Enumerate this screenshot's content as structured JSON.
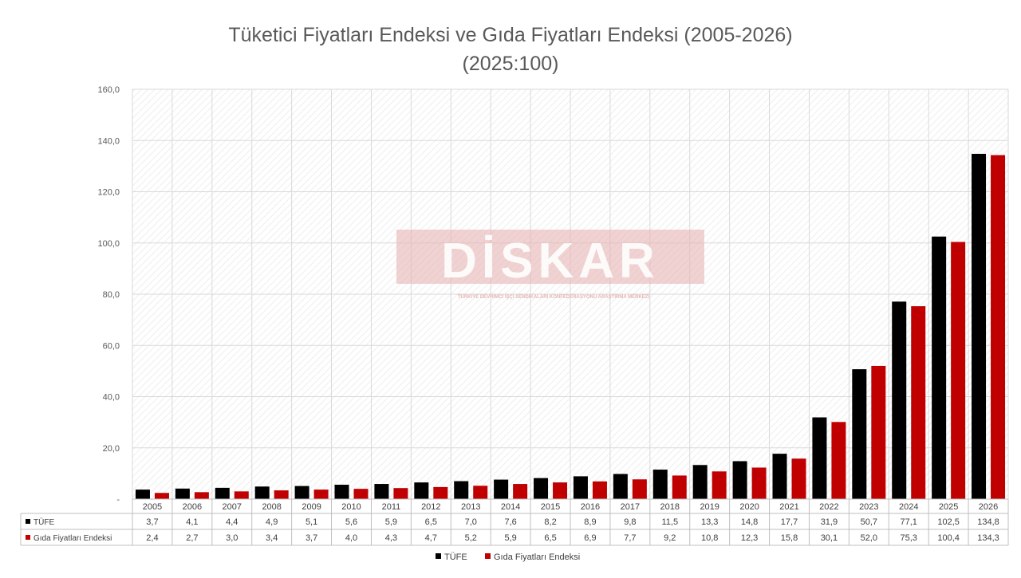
{
  "chart_data": {
    "type": "bar",
    "title": "Tüketici Fiyatları Endeksi ve Gıda Fiyatları Endeksi (2005-2026)",
    "subtitle": "(2025:100)",
    "categories": [
      "2005",
      "2006",
      "2007",
      "2008",
      "2009",
      "2010",
      "2011",
      "2012",
      "2013",
      "2014",
      "2015",
      "2016",
      "2017",
      "2018",
      "2019",
      "2020",
      "2021",
      "2022",
      "2023",
      "2024",
      "2025",
      "2026"
    ],
    "series": [
      {
        "name": "TÜFE",
        "color": "#000000",
        "values": [
          3.7,
          4.1,
          4.4,
          4.9,
          5.1,
          5.6,
          5.9,
          6.5,
          7.0,
          7.6,
          8.2,
          8.9,
          9.8,
          11.5,
          13.3,
          14.8,
          17.7,
          31.9,
          50.7,
          77.1,
          102.5,
          134.8
        ],
        "labels": [
          "3,7",
          "4,1",
          "4,4",
          "4,9",
          "5,1",
          "5,6",
          "5,9",
          "6,5",
          "7,0",
          "7,6",
          "8,2",
          "8,9",
          "9,8",
          "11,5",
          "13,3",
          "14,8",
          "17,7",
          "31,9",
          "50,7",
          "77,1",
          "102,5",
          "134,8"
        ]
      },
      {
        "name": "Gıda Fiyatları Endeksi",
        "color": "#c00000",
        "values": [
          2.4,
          2.7,
          3.0,
          3.4,
          3.7,
          4.0,
          4.3,
          4.7,
          5.2,
          5.9,
          6.5,
          6.9,
          7.7,
          9.2,
          10.8,
          12.3,
          15.8,
          30.1,
          52.0,
          75.3,
          100.4,
          134.3
        ],
        "labels": [
          "2,4",
          "2,7",
          "3,0",
          "3,4",
          "3,7",
          "4,0",
          "4,3",
          "4,7",
          "5,2",
          "5,9",
          "6,5",
          "6,9",
          "7,7",
          "9,2",
          "10,8",
          "12,3",
          "15,8",
          "30,1",
          "52,0",
          "75,3",
          "100,4",
          "134,3"
        ]
      }
    ],
    "ylim": [
      0,
      160
    ],
    "yticks": [
      0,
      20,
      40,
      60,
      80,
      100,
      120,
      140,
      160
    ],
    "ytick_labels": [
      "-",
      "20,0",
      "40,0",
      "60,0",
      "80,0",
      "100,0",
      "120,0",
      "140,0",
      "160,0"
    ],
    "grid": true,
    "data_table": true,
    "legend_position": "bottom-center",
    "watermark": {
      "text": "DİSKAR",
      "subtext": "TÜRKİYE DEVRİMCİ İŞÇİ SENDİKALARI KONFEDERASYONU ARAŞTIRMA MERKEZİ",
      "color": "#e8b4b4"
    }
  }
}
